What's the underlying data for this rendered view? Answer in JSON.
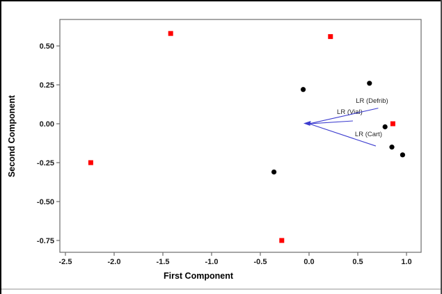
{
  "window": {
    "border_top_color": "#000000",
    "border_left_color": "#000000",
    "border_right_color": "#4a4a4a",
    "divider_color": "#c8c8c8",
    "background": "#ffffff"
  },
  "chart_data": {
    "type": "scatter",
    "title": "",
    "xlabel": "First Component",
    "ylabel": "Second Component",
    "xlim": [
      -2.557,
      1.15
    ],
    "ylim": [
      -0.826,
      0.67
    ],
    "grid": false,
    "legend": null,
    "frame_color": "#6b6b6b",
    "x_ticks": [
      {
        "value": -2.5,
        "label": "-2.5"
      },
      {
        "value": -2.0,
        "label": "-2.0"
      },
      {
        "value": -1.5,
        "label": "-1.5"
      },
      {
        "value": -1.0,
        "label": "-1.0"
      },
      {
        "value": -0.5,
        "label": "-0.5"
      },
      {
        "value": 0.0,
        "label": "0.0"
      },
      {
        "value": 0.5,
        "label": "0.5"
      },
      {
        "value": 1.0,
        "label": "1.0"
      }
    ],
    "y_ticks": [
      {
        "value": 0.5,
        "label": "0.50"
      },
      {
        "value": 0.25,
        "label": "0.25"
      },
      {
        "value": 0.0,
        "label": "0.00"
      },
      {
        "value": -0.25,
        "label": "-0.25"
      },
      {
        "value": -0.5,
        "label": "-0.50"
      },
      {
        "value": -0.75,
        "label": "-0.75"
      }
    ],
    "series": [
      {
        "name": "score-points-squares",
        "marker": "square",
        "color": "#ff0000",
        "points": [
          [
            -1.42,
            0.58
          ],
          [
            0.22,
            0.56
          ],
          [
            0.86,
            0.0
          ],
          [
            -2.24,
            -0.25
          ],
          [
            -0.28,
            -0.75
          ]
        ]
      },
      {
        "name": "score-points-circles",
        "marker": "circle",
        "color": "#000000",
        "points": [
          [
            0.62,
            0.26
          ],
          [
            -0.06,
            0.22
          ],
          [
            0.78,
            -0.02
          ],
          [
            0.85,
            -0.15
          ],
          [
            0.96,
            -0.2
          ],
          [
            -0.36,
            -0.31
          ]
        ]
      }
    ],
    "vectors": {
      "color": "#3c3ccf",
      "origin": [
        0,
        0
      ],
      "items": [
        {
          "label": "LR (Defrib)",
          "end": [
            0.71,
            0.1
          ],
          "label_pos": [
            0.48,
            0.17
          ]
        },
        {
          "label": "LR (Vial)",
          "end": [
            0.45,
            0.018
          ],
          "label_pos": [
            0.286,
            0.098
          ]
        },
        {
          "label": "LR (Cart)",
          "end": [
            0.685,
            -0.143
          ],
          "label_pos": [
            0.471,
            -0.045
          ]
        }
      ]
    }
  }
}
